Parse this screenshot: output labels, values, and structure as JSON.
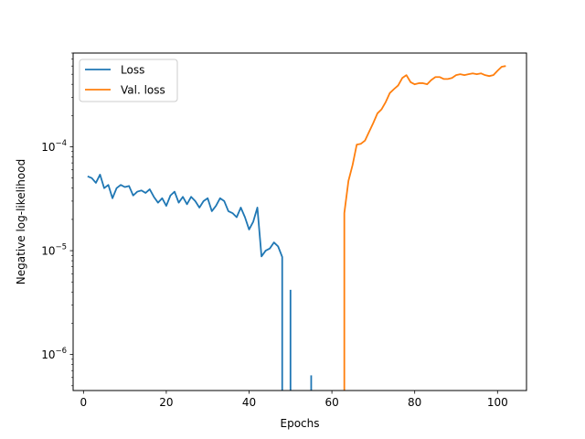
{
  "chart_data": {
    "type": "line",
    "title": "",
    "xlabel": "Epochs",
    "ylabel": "Negative log-likelihood",
    "y_scale": "log",
    "xlim": [
      -2.5,
      107
    ],
    "ylim": [
      4.5e-07,
      0.0008
    ],
    "x_ticks": [
      0,
      20,
      40,
      60,
      80,
      100
    ],
    "y_major_ticks": [
      1e-06,
      1e-05,
      0.0001
    ],
    "y_tick_labels": [
      {
        "base": "10",
        "exp": "−6"
      },
      {
        "base": "10",
        "exp": "−5"
      },
      {
        "base": "10",
        "exp": "−4"
      }
    ],
    "grid": false,
    "legend": {
      "position": "top-left",
      "entries": [
        "Loss",
        "Val. loss"
      ]
    },
    "series": [
      {
        "name": "Loss",
        "color": "#1f77b4",
        "x": [
          1,
          2,
          3,
          4,
          5,
          6,
          7,
          8,
          9,
          10,
          11,
          12,
          13,
          14,
          15,
          16,
          17,
          18,
          19,
          20,
          21,
          22,
          23,
          24,
          25,
          26,
          27,
          28,
          29,
          30,
          31,
          32,
          33,
          34,
          35,
          36,
          37,
          38,
          39,
          40,
          41,
          42,
          43,
          44,
          45,
          46,
          47,
          48
        ],
        "y": [
          5.2e-05,
          5e-05,
          4.5e-05,
          5.4e-05,
          4e-05,
          4.3e-05,
          3.2e-05,
          4e-05,
          4.3e-05,
          4.1e-05,
          4.2e-05,
          3.4e-05,
          3.7e-05,
          3.8e-05,
          3.6e-05,
          3.9e-05,
          3.3e-05,
          2.9e-05,
          3.2e-05,
          2.7e-05,
          3.4e-05,
          3.7e-05,
          2.9e-05,
          3.3e-05,
          2.8e-05,
          3.3e-05,
          3e-05,
          2.6e-05,
          3e-05,
          3.2e-05,
          2.4e-05,
          2.7e-05,
          3.2e-05,
          3e-05,
          2.4e-05,
          2.3e-05,
          2.1e-05,
          2.6e-05,
          2.1e-05,
          1.6e-05,
          1.9e-05,
          2.6e-05,
          8.8e-06,
          1e-05,
          1.05e-05,
          1.2e-05,
          1.1e-05,
          8.7e-06
        ],
        "spikes": [
          {
            "x": 50,
            "y": 4.2e-06
          },
          {
            "x": 55,
            "y": 6.3e-07
          }
        ]
      },
      {
        "name": "Val. loss",
        "color": "#ff7f0e",
        "x": [
          63,
          64,
          65,
          66,
          67,
          68,
          69,
          70,
          71,
          72,
          73,
          74,
          75,
          76,
          77,
          78,
          79,
          80,
          81,
          82,
          83,
          84,
          85,
          86,
          87,
          88,
          89,
          90,
          91,
          92,
          93,
          94,
          95,
          96,
          97,
          98,
          99,
          100,
          101,
          102
        ],
        "y": [
          2.3e-05,
          4.7e-05,
          6.7e-05,
          0.000105,
          0.000107,
          0.000115,
          0.00014,
          0.00017,
          0.00021,
          0.00023,
          0.00027,
          0.00033,
          0.00036,
          0.00039,
          0.00046,
          0.00049,
          0.00042,
          0.0004,
          0.00041,
          0.00041,
          0.0004,
          0.00044,
          0.00047,
          0.00047,
          0.00045,
          0.00045,
          0.00046,
          0.00049,
          0.0005,
          0.00049,
          0.0005,
          0.00051,
          0.0005,
          0.00051,
          0.00049,
          0.00048,
          0.00049,
          0.00054,
          0.00059,
          0.0006
        ]
      }
    ]
  }
}
